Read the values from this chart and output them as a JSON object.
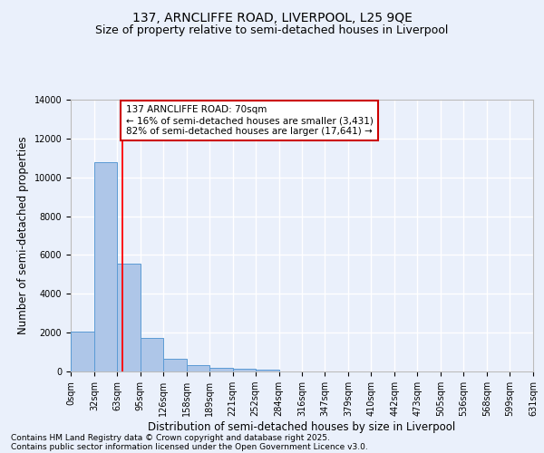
{
  "title1": "137, ARNCLIFFE ROAD, LIVERPOOL, L25 9QE",
  "title2": "Size of property relative to semi-detached houses in Liverpool",
  "xlabel": "Distribution of semi-detached houses by size in Liverpool",
  "ylabel": "Number of semi-detached properties",
  "footnote1": "Contains HM Land Registry data © Crown copyright and database right 2025.",
  "footnote2": "Contains public sector information licensed under the Open Government Licence v3.0.",
  "annotation_title": "137 ARNCLIFFE ROAD: 70sqm",
  "annotation_line1": "← 16% of semi-detached houses are smaller (3,431)",
  "annotation_line2": "82% of semi-detached houses are larger (17,641) →",
  "property_size": 70,
  "bin_edges": [
    0,
    32,
    63,
    95,
    126,
    158,
    189,
    221,
    252,
    284,
    316,
    347,
    379,
    410,
    442,
    473,
    505,
    536,
    568,
    599,
    631
  ],
  "bin_labels": [
    "0sqm",
    "32sqm",
    "63sqm",
    "95sqm",
    "126sqm",
    "158sqm",
    "189sqm",
    "221sqm",
    "252sqm",
    "284sqm",
    "316sqm",
    "347sqm",
    "379sqm",
    "410sqm",
    "442sqm",
    "473sqm",
    "505sqm",
    "536sqm",
    "568sqm",
    "599sqm",
    "631sqm"
  ],
  "counts": [
    2050,
    10800,
    5550,
    1750,
    650,
    310,
    185,
    130,
    80,
    0,
    0,
    0,
    0,
    0,
    0,
    0,
    0,
    0,
    0,
    0
  ],
  "bar_color": "#aec6e8",
  "bar_edge_color": "#5b9bd5",
  "redline_x": 70,
  "ylim": [
    0,
    14000
  ],
  "yticks": [
    0,
    2000,
    4000,
    6000,
    8000,
    10000,
    12000,
    14000
  ],
  "background_color": "#eaf0fb",
  "grid_color": "#ffffff",
  "annotation_box_color": "#ffffff",
  "annotation_box_edge": "#cc0000",
  "title_fontsize": 10,
  "subtitle_fontsize": 9,
  "label_fontsize": 8.5,
  "tick_fontsize": 7,
  "footnote_fontsize": 6.5,
  "annotation_fontsize": 7.5
}
